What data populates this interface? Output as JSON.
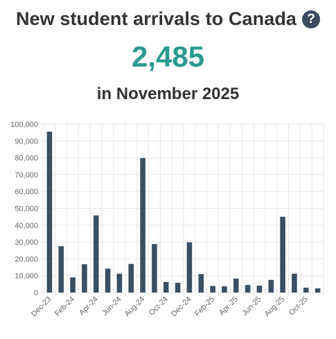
{
  "header": {
    "title": "New student arrivals to Canada",
    "help_icon": "question-circle-icon"
  },
  "summary": {
    "value": "2,485",
    "period": "in November 2025",
    "value_color": "#2a9a90"
  },
  "colors": {
    "bar": "#3b4f63",
    "grid": "#e6e6e6",
    "text": "#333333"
  },
  "chart_data": {
    "type": "bar",
    "categories": [
      "Dec-23",
      "Jan-24",
      "Feb-24",
      "Mar-24",
      "Apr-24",
      "May-24",
      "Jun-24",
      "Jul-24",
      "Aug-24",
      "Sep-24",
      "Oct-24",
      "Nov-24",
      "Dec-24",
      "Jan-25",
      "Feb-25",
      "Mar-25",
      "Apr-25",
      "May-25",
      "Jun-25",
      "Jul-25",
      "Aug-25",
      "Sep-25",
      "Oct-25",
      "Nov-25"
    ],
    "x_tick_labels": [
      "Dec-23",
      "Feb-24",
      "Apr-24",
      "Jun-24",
      "Aug-24",
      "Oct-24",
      "Dec-24",
      "Feb-25",
      "Apr-25",
      "Jun-25",
      "Aug-25",
      "Oct-25"
    ],
    "values": [
      95500,
      27500,
      9000,
      16800,
      45800,
      14200,
      11200,
      17000,
      79800,
      28800,
      6300,
      5800,
      29800,
      11000,
      3900,
      3700,
      8300,
      4500,
      4100,
      7500,
      45000,
      11200,
      2900,
      2485
    ],
    "ylim": [
      0,
      100000
    ],
    "yticks": [
      0,
      10000,
      20000,
      30000,
      40000,
      50000,
      60000,
      70000,
      80000,
      90000,
      100000
    ],
    "ytick_labels": [
      "0",
      "10,000",
      "20,000",
      "30,000",
      "40,000",
      "50,000",
      "60,000",
      "70,000",
      "80,000",
      "90,000",
      "100,000"
    ],
    "grid": true,
    "xlabel": "",
    "ylabel": ""
  }
}
